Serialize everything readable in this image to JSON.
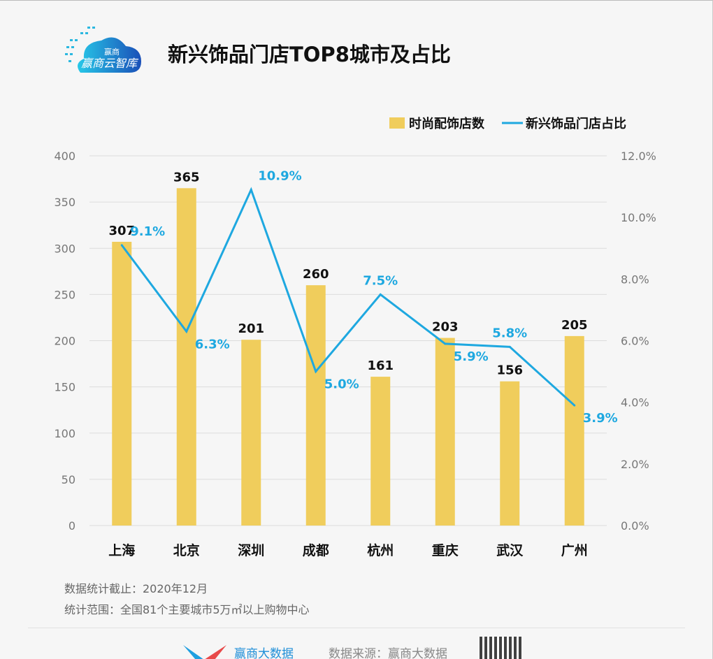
{
  "header": {
    "title": "新兴饰品门店TOP8城市及占比",
    "logo_text": "赢商云智库"
  },
  "chart_data": {
    "type": "bar+line",
    "categories": [
      "上海",
      "北京",
      "深圳",
      "成都",
      "杭州",
      "重庆",
      "武汉",
      "广州"
    ],
    "series": [
      {
        "name": "时尚配饰店数",
        "type": "bar",
        "axis": "left",
        "values": [
          307,
          365,
          201,
          260,
          161,
          203,
          156,
          205
        ],
        "color": "#f0cd5c"
      },
      {
        "name": "新兴饰品门店占比",
        "type": "line",
        "axis": "right",
        "values": [
          9.1,
          6.3,
          10.9,
          5.0,
          7.5,
          5.9,
          5.8,
          3.9
        ],
        "labels": [
          "9.1%",
          "6.3%",
          "10.9%",
          "5.0%",
          "7.5%",
          "5.9%",
          "5.8%",
          "3.9%"
        ],
        "color": "#1ea8e0"
      }
    ],
    "left_axis": {
      "ylim": [
        0,
        400
      ],
      "ticks": [
        "0",
        "50",
        "100",
        "150",
        "200",
        "250",
        "300",
        "350",
        "400"
      ]
    },
    "right_axis": {
      "ylim": [
        0,
        12
      ],
      "ticks": [
        "0.0%",
        "2.0%",
        "4.0%",
        "6.0%",
        "8.0%",
        "10.0%",
        "12.0%"
      ]
    },
    "grid": true,
    "legend": "top-right"
  },
  "notes": [
    "数据统计截止：2020年12月",
    "统计范围：全国81个主要城市5万㎡以上购物中心"
  ],
  "footer": {
    "brand": "赢商大数据",
    "source": "数据来源：赢商大数据"
  }
}
